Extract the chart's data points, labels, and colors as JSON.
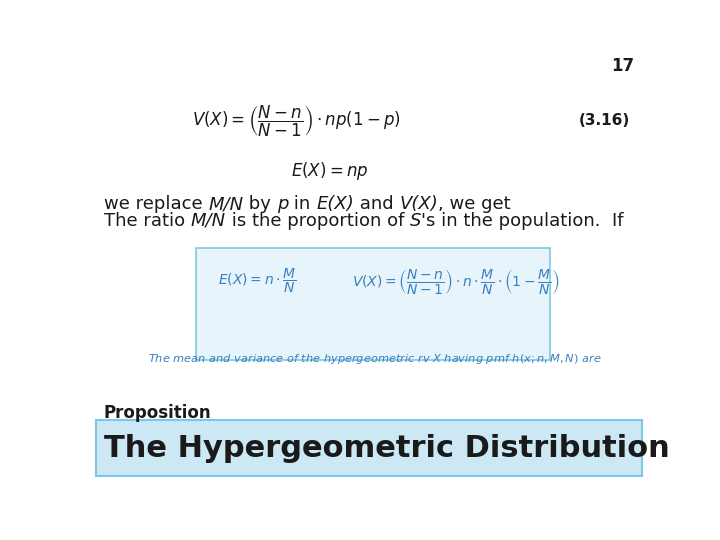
{
  "title": "The Hypergeometric Distribution",
  "title_bg_color": "#cce8f4",
  "title_border_color": "#7ec8e3",
  "title_text_color": "#1a1a1a",
  "proposition_label": "Proposition",
  "proposition_color": "#1a1a1a",
  "box_bg_color": "#e8f4fb",
  "box_border_color": "#7ec8e3",
  "blue_text_color": "#3a7fbf",
  "body_text_color": "#1a1a1a",
  "eq_color": "#3a7fbf",
  "number_color": "#1a1a1a",
  "page_number": "17",
  "ref_number": "(3.16)",
  "box_desc": "The mean and variance of the hypergeometric rv $X$ having pmf $h(x; n, M, N)$ are",
  "title_fontsize": 22,
  "prop_fontsize": 12,
  "body_fontsize": 13,
  "eq_fontsize": 11
}
